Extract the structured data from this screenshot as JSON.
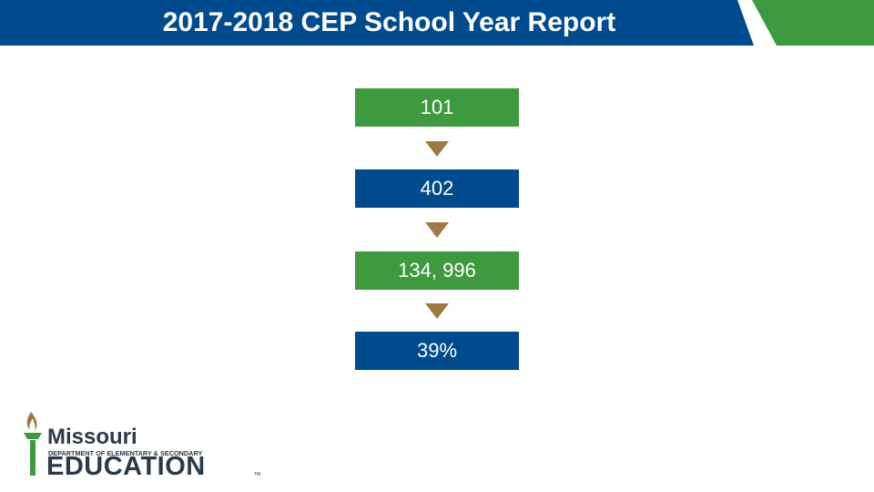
{
  "header": {
    "title": "2017-2018 CEP School Year Report"
  },
  "flow": {
    "boxes": [
      {
        "value": "101"
      },
      {
        "value": "402"
      },
      {
        "value": "134, 996"
      },
      {
        "value": "39%"
      }
    ]
  },
  "logo": {
    "title": "Missouri",
    "subtitle": "DEPARTMENT OF ELEMENTARY & SECONDARY",
    "main": "EDUCATION",
    "tm": "TM"
  },
  "colors": {
    "blue": "#004b8d",
    "green": "#3e9a3e",
    "arrow": "#9e7a3e",
    "logo_text": "#2b3a4a"
  }
}
